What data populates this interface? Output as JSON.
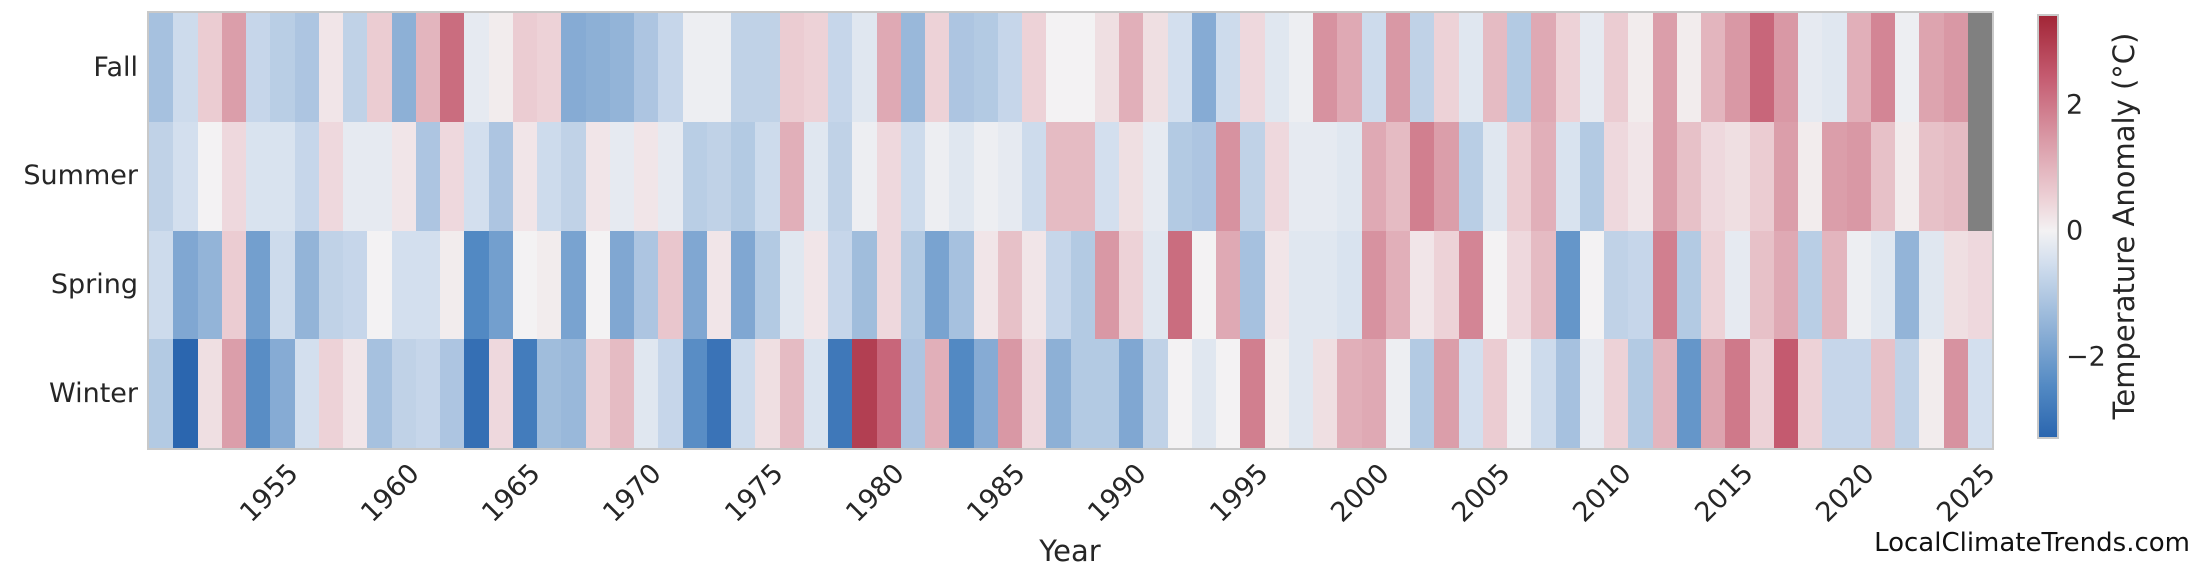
{
  "watermark": "LocalClimateTrends.com",
  "chart_data": {
    "type": "heatmap",
    "title": "",
    "xlabel": "Year",
    "ylabel": "",
    "rows": [
      "Fall",
      "Summer",
      "Spring",
      "Winter"
    ],
    "years": [
      1950,
      1951,
      1952,
      1953,
      1954,
      1955,
      1956,
      1957,
      1958,
      1959,
      1960,
      1961,
      1962,
      1963,
      1964,
      1965,
      1966,
      1967,
      1968,
      1969,
      1970,
      1971,
      1972,
      1973,
      1974,
      1975,
      1976,
      1977,
      1978,
      1979,
      1980,
      1981,
      1982,
      1983,
      1984,
      1985,
      1986,
      1987,
      1988,
      1989,
      1990,
      1991,
      1992,
      1993,
      1994,
      1995,
      1996,
      1997,
      1998,
      1999,
      2000,
      2001,
      2002,
      2003,
      2004,
      2005,
      2006,
      2007,
      2008,
      2009,
      2010,
      2011,
      2012,
      2013,
      2014,
      2015,
      2016,
      2017,
      2018,
      2019,
      2020,
      2021,
      2022,
      2023,
      2024,
      2025
    ],
    "x_ticks": [
      "1955",
      "1960",
      "1965",
      "1970",
      "1975",
      "1980",
      "1985",
      "1990",
      "1995",
      "2000",
      "2005",
      "2010",
      "2015",
      "2020",
      "2025"
    ],
    "values": {
      "Fall": [
        -1.2,
        -0.6,
        0.6,
        1.4,
        -0.7,
        -0.9,
        -1.1,
        0.2,
        -0.8,
        0.6,
        -1.6,
        1.0,
        2.2,
        -0.2,
        0.1,
        0.6,
        0.5,
        -1.7,
        -1.6,
        -1.5,
        -1.1,
        -0.7,
        -0.1,
        -0.1,
        -0.8,
        -0.8,
        0.6,
        0.5,
        -0.7,
        -0.3,
        1.2,
        -1.4,
        0.5,
        -1.1,
        -1.0,
        -0.7,
        0.5,
        0.0,
        0.0,
        0.3,
        1.1,
        0.3,
        -0.5,
        -1.7,
        -0.6,
        0.4,
        -0.3,
        -0.1,
        1.6,
        1.2,
        -0.6,
        1.5,
        -0.8,
        0.5,
        -0.3,
        0.9,
        -1.0,
        1.2,
        0.5,
        -0.2,
        0.6,
        0.1,
        1.4,
        0.1,
        1.0,
        1.5,
        2.3,
        1.5,
        -0.2,
        -0.3,
        1.1,
        1.8,
        -0.1,
        1.3,
        1.5,
        null
      ],
      "Summer": [
        -0.8,
        -0.5,
        0.0,
        0.4,
        -0.4,
        -0.4,
        -0.7,
        0.4,
        -0.2,
        -0.2,
        0.2,
        -1.1,
        0.4,
        -0.5,
        -1.1,
        0.2,
        -0.6,
        -0.8,
        0.2,
        -0.2,
        0.2,
        -0.2,
        -0.9,
        -0.8,
        -1.0,
        -0.6,
        1.1,
        -0.3,
        -0.8,
        -0.1,
        0.4,
        -0.6,
        -0.1,
        -0.3,
        -0.1,
        -0.2,
        -0.6,
        0.9,
        0.9,
        -0.5,
        0.3,
        -0.2,
        -1.0,
        -1.1,
        1.6,
        -0.8,
        0.4,
        -0.2,
        -0.2,
        -0.3,
        1.2,
        0.9,
        1.9,
        1.4,
        -0.9,
        -0.3,
        0.6,
        1.1,
        -0.4,
        -1.0,
        0.4,
        0.2,
        1.4,
        0.8,
        0.4,
        0.3,
        0.6,
        1.4,
        0.1,
        1.4,
        1.5,
        0.8,
        0.1,
        0.8,
        0.9,
        null
      ],
      "Spring": [
        -0.6,
        -1.8,
        -1.5,
        0.6,
        -2.0,
        -0.6,
        -1.5,
        -0.8,
        -0.7,
        0.0,
        -0.5,
        -0.5,
        0.1,
        -2.5,
        -2.0,
        0.0,
        0.1,
        -1.9,
        0.0,
        -1.8,
        -1.1,
        0.7,
        -1.8,
        0.2,
        -1.8,
        -1.0,
        -0.3,
        0.2,
        -0.7,
        -1.3,
        0.4,
        -1.0,
        -1.9,
        -1.2,
        0.2,
        0.8,
        0.2,
        -0.7,
        -1.0,
        1.5,
        0.5,
        -0.3,
        2.2,
        0.0,
        1.2,
        -1.2,
        0.2,
        -0.3,
        -0.3,
        -0.4,
        1.6,
        1.1,
        0.2,
        0.5,
        1.8,
        0.0,
        0.4,
        0.9,
        -2.2,
        0.0,
        -0.8,
        -0.7,
        1.9,
        -1.0,
        0.5,
        -0.2,
        0.8,
        1.2,
        -0.9,
        1.0,
        -0.1,
        -0.3,
        -1.5,
        -0.3,
        0.3,
        0.4
      ],
      "Winter": [
        -1.0,
        -3.3,
        0.3,
        1.4,
        -2.4,
        -1.7,
        -0.5,
        0.5,
        0.2,
        -1.2,
        -0.8,
        -0.7,
        -1.1,
        -3.1,
        0.4,
        -2.8,
        -1.3,
        -1.4,
        0.5,
        0.9,
        -0.3,
        -0.7,
        -2.4,
        -3.0,
        -0.6,
        0.3,
        0.9,
        -0.4,
        -2.9,
        3.0,
        2.3,
        -1.1,
        1.1,
        -2.5,
        -1.7,
        1.5,
        0.4,
        -1.6,
        -1.0,
        -1.0,
        -1.8,
        -0.8,
        0.0,
        -0.3,
        0.0,
        1.9,
        0.1,
        -0.3,
        0.3,
        1.1,
        1.2,
        -0.1,
        -1.0,
        1.4,
        -0.5,
        0.6,
        -0.1,
        -0.6,
        -1.2,
        -0.2,
        0.5,
        -1.0,
        1.0,
        -2.2,
        1.3,
        2.0,
        0.5,
        2.5,
        0.5,
        -0.7,
        -0.7,
        0.8,
        -0.8,
        0.1,
        1.6,
        -0.5
      ]
    },
    "missing_color": "#808080",
    "colorbar": {
      "label": "Temperature Anomaly (°C)",
      "vmin": -3.3,
      "vmax": 3.45,
      "ticks": [
        {
          "value": 2,
          "label": "2"
        },
        {
          "value": 0,
          "label": "0"
        },
        {
          "value": -2,
          "label": "−2"
        }
      ],
      "stops": [
        {
          "v": -3.3,
          "c": "#2b66af"
        },
        {
          "v": -2.5,
          "c": "#5289c3"
        },
        {
          "v": -1.5,
          "c": "#93b4d8"
        },
        {
          "v": -0.5,
          "c": "#d3dfee"
        },
        {
          "v": 0.0,
          "c": "#f3f2f3"
        },
        {
          "v": 0.5,
          "c": "#edd2d7"
        },
        {
          "v": 1.5,
          "c": "#d998a5"
        },
        {
          "v": 2.5,
          "c": "#c45a6f"
        },
        {
          "v": 3.45,
          "c": "#a22637"
        }
      ]
    }
  }
}
